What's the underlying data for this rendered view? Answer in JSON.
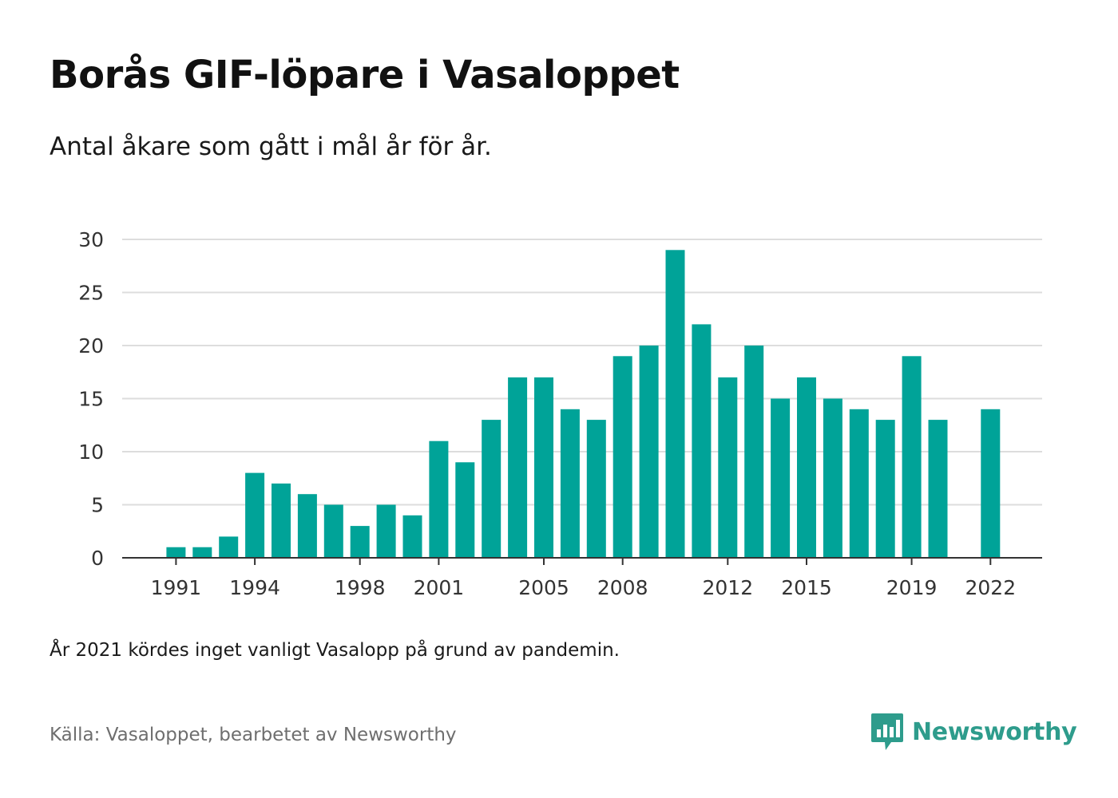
{
  "title": "Borås GIF-löpare i Vasaloppet",
  "subtitle": "Antal åkare som gått i mål år för år.",
  "note": "År 2021 kördes inget vanligt Vasalopp på grund av pandemin.",
  "source": "Källa: Vasaloppet, bearbetet av Newsworthy",
  "brand": {
    "name": "Newsworthy",
    "icon": "newsworthy-logo-icon",
    "color": "#2e9c8c"
  },
  "colors": {
    "bar": "#00a398",
    "grid": "#dddddd",
    "axis": "#333333",
    "tick_text": "#333333"
  },
  "chart_data": {
    "type": "bar",
    "title": "Borås GIF-löpare i Vasaloppet",
    "subtitle": "Antal åkare som gått i mål år för år.",
    "xlabel": "",
    "ylabel": "",
    "ylim": [
      0,
      30
    ],
    "yticks": [
      0,
      5,
      10,
      15,
      20,
      25,
      30
    ],
    "xtick_labels": [
      "1991",
      "1994",
      "1998",
      "2001",
      "2005",
      "2008",
      "2012",
      "2015",
      "2019",
      "2022"
    ],
    "grid": true,
    "legend": "none",
    "categories": [
      "1990",
      "1991",
      "1992",
      "1993",
      "1994",
      "1995",
      "1996",
      "1997",
      "1998",
      "1999",
      "2000",
      "2001",
      "2002",
      "2003",
      "2004",
      "2005",
      "2006",
      "2007",
      "2008",
      "2009",
      "2010",
      "2011",
      "2012",
      "2013",
      "2014",
      "2015",
      "2016",
      "2017",
      "2018",
      "2019",
      "2020",
      "2021",
      "2022",
      "2023"
    ],
    "values": [
      0,
      1,
      1,
      2,
      8,
      7,
      6,
      5,
      3,
      5,
      4,
      11,
      9,
      13,
      17,
      17,
      14,
      13,
      19,
      20,
      29,
      22,
      17,
      20,
      15,
      17,
      15,
      14,
      13,
      19,
      13,
      null,
      14,
      null
    ]
  }
}
